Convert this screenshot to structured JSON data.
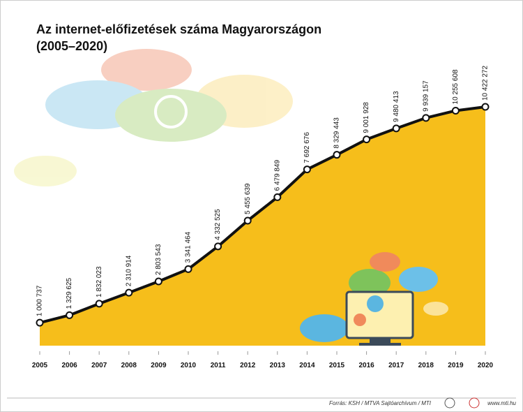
{
  "chart_data": {
    "type": "area",
    "title": "Az internet-előfizetések száma Magyarországon",
    "subtitle": "(2005–2020)",
    "categories": [
      "2005",
      "2006",
      "2007",
      "2008",
      "2009",
      "2010",
      "2011",
      "2012",
      "2013",
      "2014",
      "2015",
      "2016",
      "2017",
      "2018",
      "2019",
      "2020"
    ],
    "series": [
      {
        "color": "#f6be1b",
        "values": [
          1000737,
          1329625,
          1832023,
          2310914,
          2803543,
          3341464,
          4332525,
          5455639,
          6479849,
          7692676,
          8329443,
          9001928,
          9480413,
          9939157,
          10255608,
          10422272
        ],
        "value_labels": [
          "1 000 737",
          "1 329 625",
          "1 832 023",
          "2 310 914",
          "2 803 543",
          "3 341 464",
          "4 332 525",
          "5 455 639",
          "6 479 849",
          "7 692 676",
          "8 329 443",
          "9 001 928",
          "9 480 413",
          "9 939 157",
          "10 255 608",
          "10 422 272"
        ]
      }
    ],
    "source": "Forrás: KSH / MTVA Sajtóarchívum / MTI",
    "website": "www.mti.hu"
  }
}
